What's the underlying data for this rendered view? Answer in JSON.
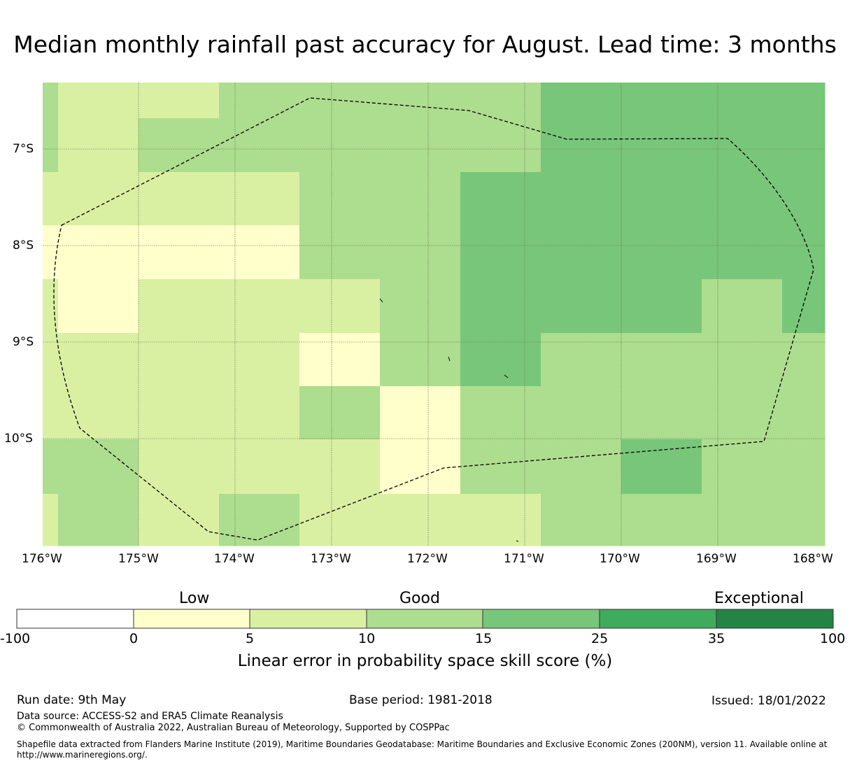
{
  "title": "Median monthly rainfall past accuracy for August. Lead time: 3 months",
  "map": {
    "lon_labels": [
      "176°W",
      "175°W",
      "174°W",
      "173°W",
      "172°W",
      "171°W",
      "170°W",
      "169°W",
      "168°W"
    ],
    "lat_labels": [
      "7°S",
      "8°S",
      "9°S",
      "10°S"
    ],
    "lon_values": [
      -176,
      -175,
      -174,
      -173,
      -172,
      -171,
      -170,
      -169,
      -168
    ],
    "lat_values": [
      -7,
      -8,
      -9,
      -10
    ]
  },
  "colorbar": {
    "title": "Linear error in probability space skill score (%)",
    "category_labels": [
      "Low",
      "Good",
      "Exceptional"
    ],
    "ticks": [
      "-100",
      "0",
      "5",
      "10",
      "15",
      "25",
      "35",
      "100"
    ],
    "colors": [
      "#ffffff",
      "#ffffcc",
      "#d9f0a3",
      "#addd8e",
      "#78c679",
      "#41ab5d",
      "#238443"
    ]
  },
  "footer": {
    "run_date": "Run date: 9th May",
    "base_period": "Base period: 1981-2018",
    "issued": "Issued: 18/01/2022",
    "data_source": "Data source: ACCESS-S2 and ERA5 Climate Reanalysis",
    "copyright": "© Commonwealth of Australia 2022, Australian Bureau of Meteorology, Supported by COSPPac",
    "shapefile_line1": "Shapefile data extracted from Flanders Marine Institute (2019), Maritime Boundaries Geodatabase: Maritime Boundaries and Exclusive Economic Zones (200NM), version 11. Available online at",
    "shapefile_line2": "http://www.marineregions.org/."
  }
}
